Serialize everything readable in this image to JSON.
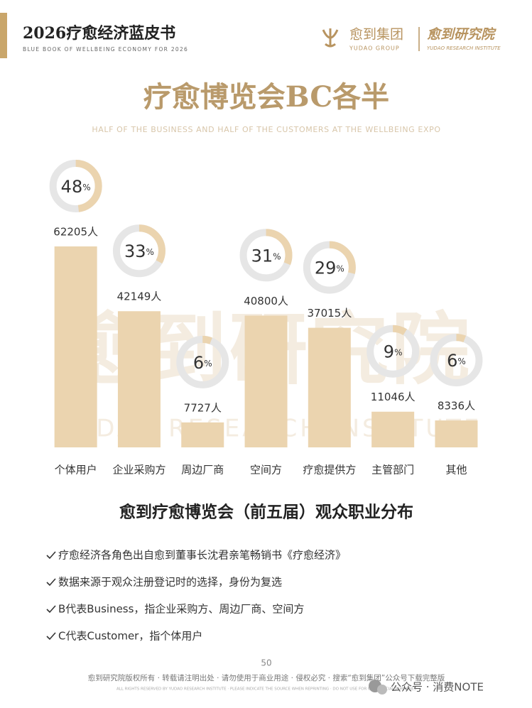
{
  "header": {
    "title": "2026疗愈经济蓝皮书",
    "subtitle": "BLUE BOOK OF WELLBEING ECONOMY FOR 2026",
    "brand": "愈到集团",
    "brand_en": "YUDAO GROUP",
    "institute": "愈到研究院",
    "institute_en": "YUDAO RESEARCH INSTITUTE"
  },
  "watermark": {
    "text": "愈到研究院",
    "text_en": "YUDAO RESEARCH INSTITUTE"
  },
  "chart_data": {
    "type": "bar",
    "title": "疗愈博览会BC各半",
    "subtitle": "HALF OF THE BUSINESS  AND HALF OF THE CUSTOMERS AT THE WELLBEING EXPO",
    "caption": "愈到疗愈博览会（前五届）观众职业分布",
    "categories": [
      "个体用户",
      "企业采购方",
      "周边厂商",
      "空间方",
      "疗愈提供方",
      "主管部门",
      "其他"
    ],
    "values": [
      62205,
      42149,
      7727,
      40800,
      37015,
      11046,
      8336
    ],
    "value_labels": [
      "62205人",
      "42149人",
      "7727人",
      "40800人",
      "37015人",
      "11046人",
      "8336人"
    ],
    "shares": [
      48,
      33,
      6,
      31,
      29,
      9,
      6
    ],
    "share_labels": [
      "48%",
      "33%",
      "6%",
      "31%",
      "29%",
      "9%",
      "6%"
    ],
    "color": "#ebd4af",
    "ring_color": "#e6e6e6"
  },
  "notes": [
    "疗愈经济各角色出自愈到董事长沈君亲笔畅销书《疗愈经济》",
    "数据来源于观众注册登记时的选择，身份为复选",
    "B代表Business，指企业采购方、周边厂商、空间方",
    "C代表Customer，指个体用户"
  ],
  "footer": {
    "page": "50",
    "copyright": "愈到研究院版权所有 · 转载请注明出处 · 请勿使用于商业用途 · 侵权必究 · 搜索“愈到集团”公众号下载完整版",
    "copyright_en": "ALL RIGHTS RESERVED BY YUDAO RESEARCH INSTITUTE · PLEASE INDICATE THE SOURCE WHEN REPRINTING · DO NOT USE FOR COMMERCIAL PURPOSES",
    "social": "公众号 · 消费NOTE"
  }
}
